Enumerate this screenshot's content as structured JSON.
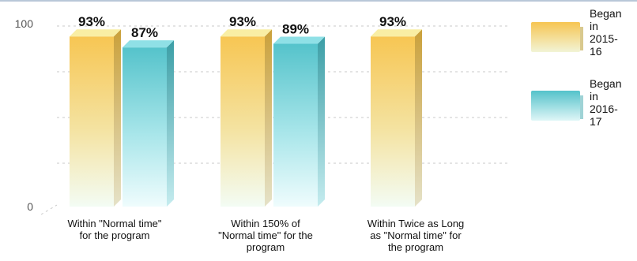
{
  "chart_data": {
    "type": "bar",
    "categories": [
      [
        "Within \"Normal time\"",
        "for the program"
      ],
      [
        "Within 150% of",
        "\"Normal time\" for the",
        "program"
      ],
      [
        "Within Twice as Long",
        "as \"Normal time\" for",
        "the program"
      ]
    ],
    "series": [
      {
        "name": [
          "Began",
          "in",
          "2015-",
          "16"
        ],
        "values": [
          93,
          93,
          93
        ],
        "labels": [
          "93%",
          "93%",
          "93%"
        ],
        "color": "#f5c75a"
      },
      {
        "name": [
          "Began",
          "in",
          "2016-",
          "17"
        ],
        "values": [
          87,
          89,
          null
        ],
        "labels": [
          "87%",
          "89%",
          null
        ],
        "color": "#5ac6cf"
      }
    ],
    "y_ticks": [
      {
        "value": 0,
        "label": "0"
      },
      {
        "value": 100,
        "label": "100"
      }
    ],
    "ylim": [
      0,
      100
    ],
    "grid": true,
    "legend_position": "right",
    "bar_style": "3d"
  }
}
